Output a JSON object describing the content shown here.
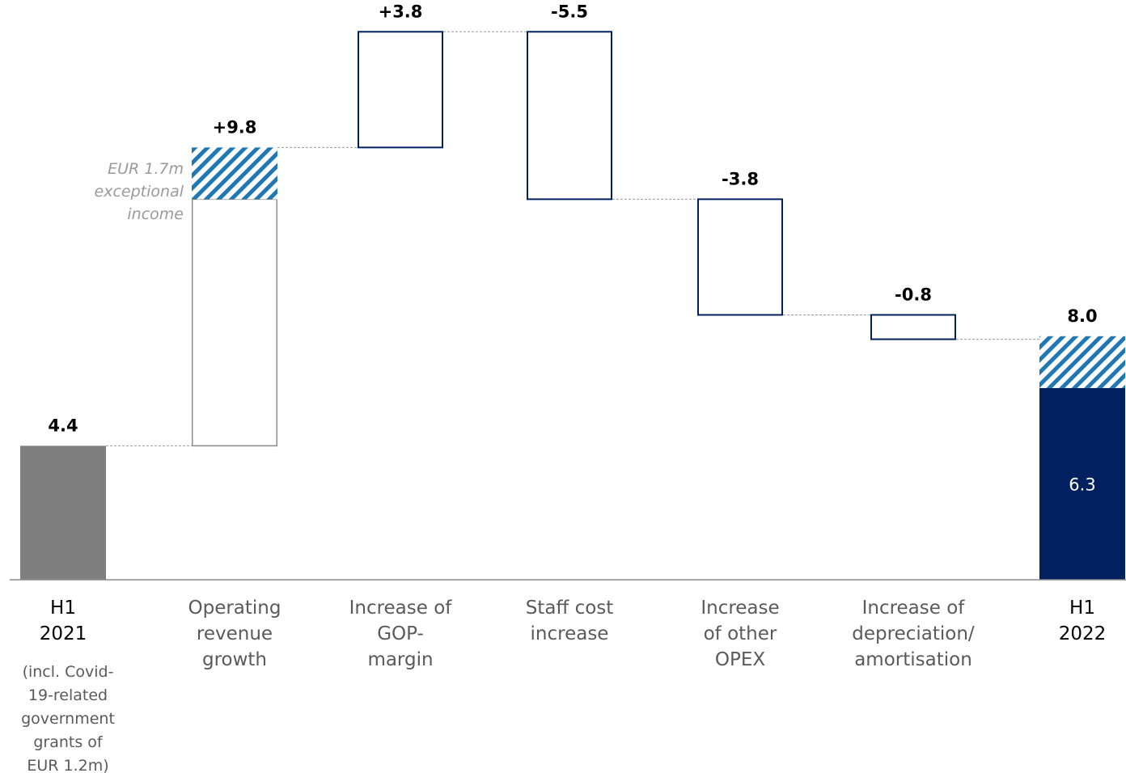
{
  "chart_data": {
    "type": "bar",
    "subtype": "waterfall",
    "categories": [
      {
        "lines": [
          "H1",
          "2021"
        ],
        "kind": "total"
      },
      {
        "lines": [
          "Operating",
          "revenue",
          "growth"
        ],
        "kind": "delta"
      },
      {
        "lines": [
          "Increase of",
          "GOP-",
          "margin"
        ],
        "kind": "delta"
      },
      {
        "lines": [
          "Staff cost",
          "increase"
        ],
        "kind": "delta"
      },
      {
        "lines": [
          "Increase",
          "of other",
          "OPEX"
        ],
        "kind": "delta"
      },
      {
        "lines": [
          "Increase of",
          "depreciation/",
          "amortisation"
        ],
        "kind": "delta"
      },
      {
        "lines": [
          "H1",
          "2022"
        ],
        "kind": "total"
      }
    ],
    "values": [
      4.4,
      9.8,
      3.8,
      -5.5,
      -3.8,
      -0.8,
      8.0
    ],
    "value_labels": [
      "4.4",
      "+9.8",
      "+3.8",
      "-5.5",
      "-3.8",
      "-0.8",
      "8.0"
    ],
    "final_excl_exceptional": 6.3,
    "final_excl_exceptional_label": "6.3",
    "exceptional_income": 1.7,
    "exceptional_annotation": [
      "EUR 1.7m",
      "exceptional",
      "income"
    ],
    "first_bar_note": [
      "(incl. Covid-",
      "19-related",
      "government",
      "grants of",
      "EUR 1.2m)"
    ],
    "ylim": [
      0,
      17.6
    ],
    "grid": false,
    "colors": {
      "start_bar": "#7f7f7f",
      "end_bar": "#002060",
      "hatch": "#1f78b4",
      "delta_outline": "#002060",
      "growth_outline": "#8c8c8c",
      "connector": "#9a9a9a",
      "axis": "#8c8c8c"
    }
  }
}
